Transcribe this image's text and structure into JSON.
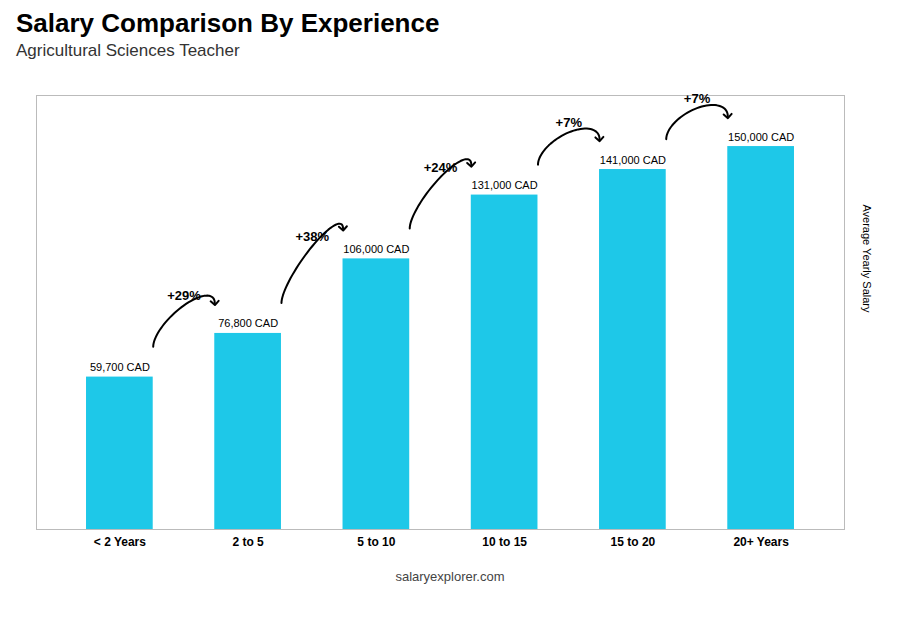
{
  "chart_data": {
    "type": "bar",
    "title": "Salary Comparison By Experience",
    "subtitle": "Agricultural Sciences Teacher",
    "categories": [
      "< 2 Years",
      "2 to 5",
      "5 to 10",
      "10 to 15",
      "15 to 20",
      "20+ Years"
    ],
    "values": [
      59700,
      76800,
      106000,
      131000,
      141000,
      150000
    ],
    "value_labels": [
      "59,700 CAD",
      "76,800 CAD",
      "106,000 CAD",
      "131,000 CAD",
      "141,000 CAD",
      "150,000 CAD"
    ],
    "data_labels": true,
    "color": "#1EC8E8",
    "ylim": [
      0,
      170000
    ],
    "ylabel": "Average Yearly Salary",
    "tick_labels": "x",
    "grid": false,
    "annotations": [
      {
        "from": "< 2 Years",
        "to": "2 to 5",
        "text": "+29%"
      },
      {
        "from": "2 to 5",
        "to": "5 to 10",
        "text": "+38%"
      },
      {
        "from": "5 to 10",
        "to": "10 to 15",
        "text": "+24%"
      },
      {
        "from": "10 to 15",
        "to": "15 to 20",
        "text": "+7%"
      },
      {
        "from": "15 to 20",
        "to": "20+ Years",
        "text": "+7%"
      }
    ],
    "caption": "salaryexplorer.com"
  }
}
